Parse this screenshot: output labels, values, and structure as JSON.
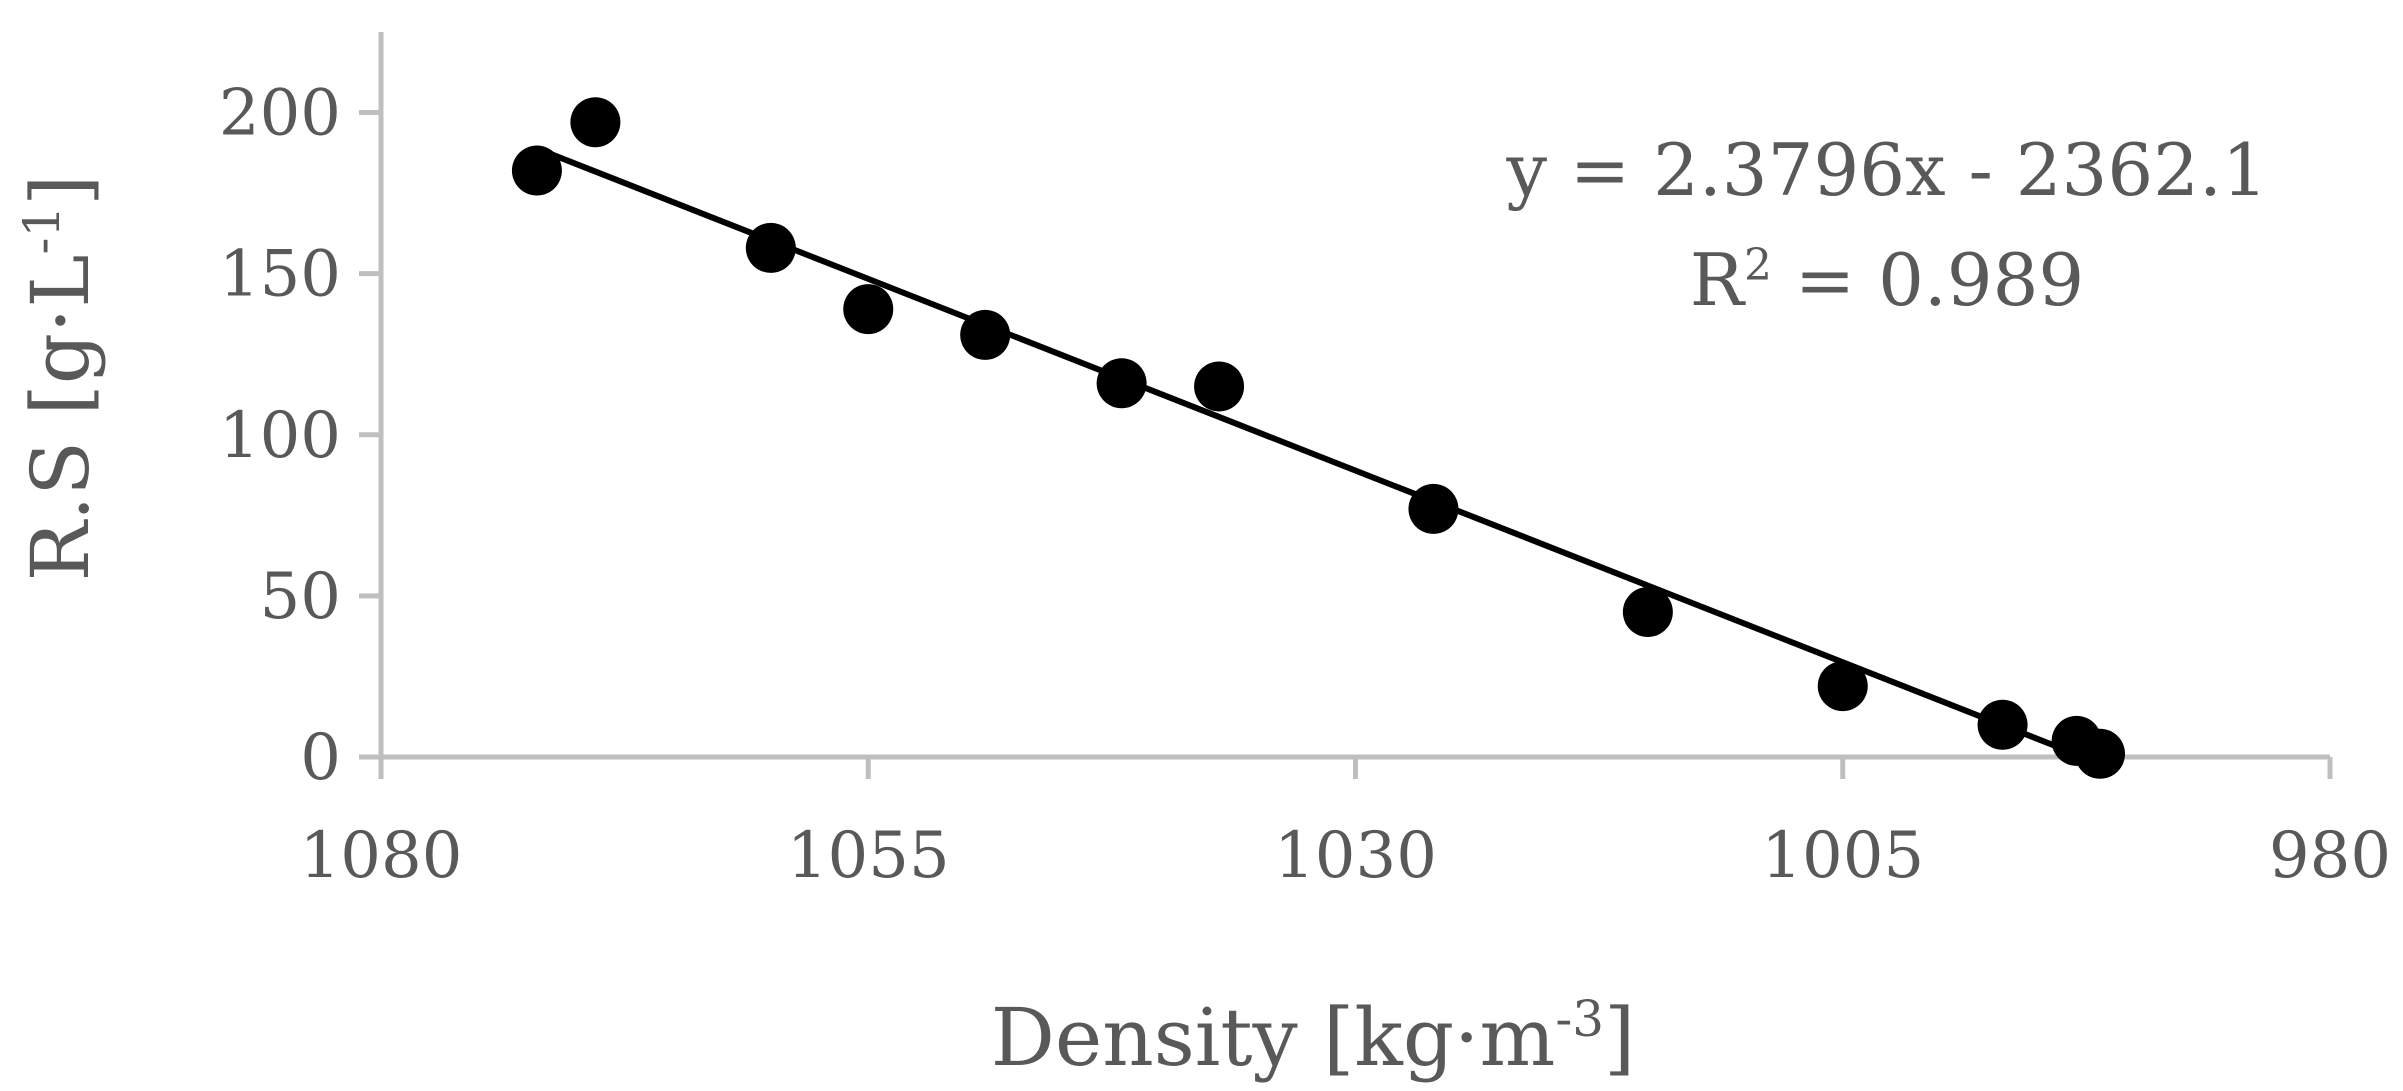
{
  "chart_data": {
    "type": "scatter",
    "title": "",
    "xlabel": "Density [kg·m",
    "xlabel_sup": "-3",
    "xlabel_end": "]",
    "ylabel": "R.S [g·L",
    "ylabel_sup": "-1",
    "ylabel_end": "]",
    "x_reversed": true,
    "xlim": [
      1080,
      980
    ],
    "ylim": [
      0,
      225
    ],
    "xticks": [
      1080,
      1055,
      1030,
      1005,
      980
    ],
    "yticks": [
      0,
      50,
      100,
      150,
      200
    ],
    "grid": false,
    "legend": "none",
    "points": [
      {
        "x": 1072.0,
        "y": 182
      },
      {
        "x": 1069.0,
        "y": 197
      },
      {
        "x": 1060.0,
        "y": 158
      },
      {
        "x": 1055.0,
        "y": 139
      },
      {
        "x": 1049.0,
        "y": 131
      },
      {
        "x": 1042.0,
        "y": 116
      },
      {
        "x": 1037.0,
        "y": 115
      },
      {
        "x": 1026.0,
        "y": 77
      },
      {
        "x": 1015.0,
        "y": 45
      },
      {
        "x": 1005.0,
        "y": 22
      },
      {
        "x": 996.8,
        "y": 10
      },
      {
        "x": 993.0,
        "y": 5
      },
      {
        "x": 991.8,
        "y": 1
      }
    ],
    "trendline": {
      "type": "linear",
      "slope": 2.3796,
      "intercept": -2362.1,
      "x_range": [
        1072,
        992.4
      ],
      "equation_label": "y = 2.3796x - 2362.1",
      "r2_label_prefix": "R",
      "r2_label_suffix": " = 0.989"
    },
    "colors": {
      "points": "#000000",
      "trendline": "#000000",
      "axis": "#bfbfbf",
      "text": "#595959"
    }
  }
}
